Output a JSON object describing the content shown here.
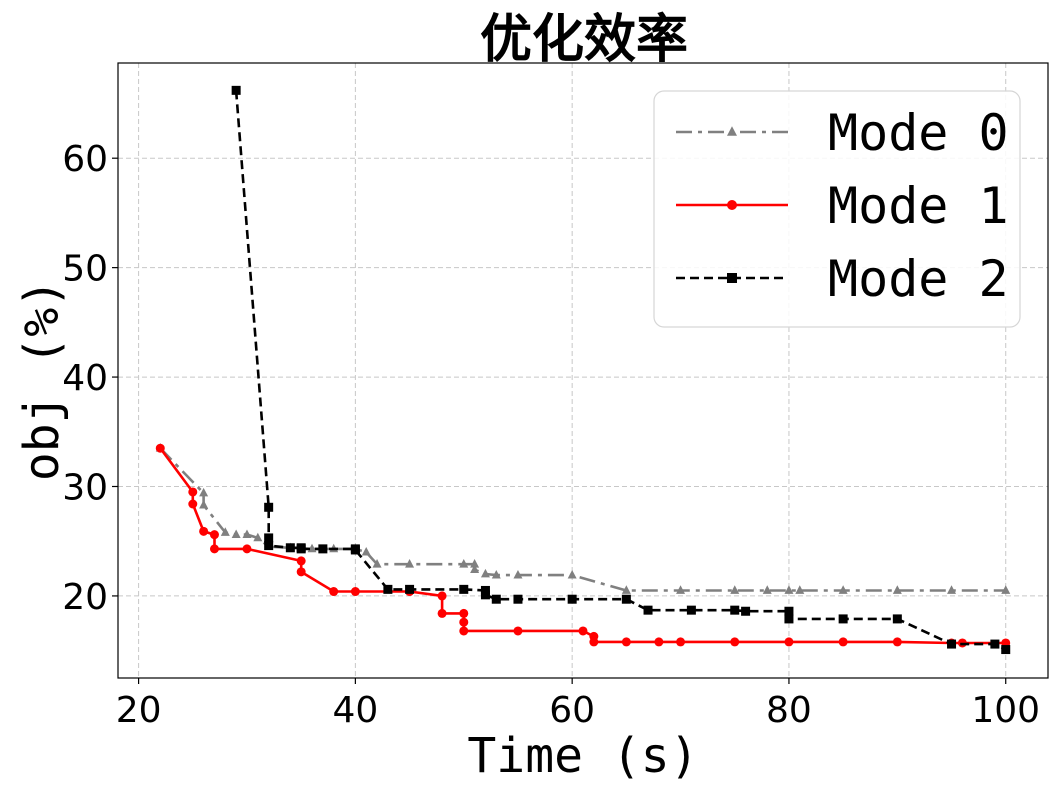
{
  "chart_data": {
    "type": "line",
    "title": "优化效率",
    "xlabel": "Time (s)",
    "ylabel": "obj (%)",
    "xlim": [
      18.1,
      103.9
    ],
    "ylim": [
      12.5,
      68.7
    ],
    "xticks": [
      20,
      40,
      60,
      80,
      100
    ],
    "yticks": [
      20,
      30,
      40,
      50,
      60
    ],
    "grid": true,
    "legend_position": "top-right",
    "series": [
      {
        "name": "Mode 0",
        "color": "#808080",
        "linestyle": "dashdot",
        "marker": "triangle",
        "points": [
          [
            22,
            33.5
          ],
          [
            26,
            29.4
          ],
          [
            26,
            28.3
          ],
          [
            28,
            25.8
          ],
          [
            29,
            25.6
          ],
          [
            30,
            25.6
          ],
          [
            31,
            25.3
          ],
          [
            32,
            24.5
          ],
          [
            34,
            24.4
          ],
          [
            36,
            24.3
          ],
          [
            38,
            24.3
          ],
          [
            40,
            24.3
          ],
          [
            41,
            24.0
          ],
          [
            42,
            22.9
          ],
          [
            45,
            22.9
          ],
          [
            50,
            22.9
          ],
          [
            51,
            22.9
          ],
          [
            51,
            22.4
          ],
          [
            52,
            22.0
          ],
          [
            53,
            21.9
          ],
          [
            55,
            21.9
          ],
          [
            60,
            21.9
          ],
          [
            65,
            20.5
          ],
          [
            70,
            20.5
          ],
          [
            75,
            20.5
          ],
          [
            78,
            20.5
          ],
          [
            80,
            20.5
          ],
          [
            81,
            20.5
          ],
          [
            85,
            20.5
          ],
          [
            90,
            20.5
          ],
          [
            95,
            20.5
          ],
          [
            100,
            20.5
          ]
        ]
      },
      {
        "name": "Mode 1",
        "color": "#ff0000",
        "linestyle": "solid",
        "marker": "circle",
        "points": [
          [
            22,
            33.5
          ],
          [
            25,
            29.5
          ],
          [
            25,
            28.4
          ],
          [
            26,
            25.9
          ],
          [
            27,
            25.6
          ],
          [
            27,
            24.3
          ],
          [
            30,
            24.3
          ],
          [
            35,
            23.2
          ],
          [
            35,
            22.2
          ],
          [
            38,
            20.4
          ],
          [
            40,
            20.4
          ],
          [
            45,
            20.4
          ],
          [
            48,
            20.0
          ],
          [
            48,
            18.4
          ],
          [
            50,
            18.4
          ],
          [
            50,
            17.6
          ],
          [
            50,
            16.8
          ],
          [
            55,
            16.8
          ],
          [
            61,
            16.8
          ],
          [
            62,
            16.3
          ],
          [
            62,
            15.8
          ],
          [
            65,
            15.8
          ],
          [
            68,
            15.8
          ],
          [
            70,
            15.8
          ],
          [
            75,
            15.8
          ],
          [
            80,
            15.8
          ],
          [
            85,
            15.8
          ],
          [
            90,
            15.8
          ],
          [
            95,
            15.7
          ],
          [
            96,
            15.7
          ],
          [
            100,
            15.7
          ]
        ]
      },
      {
        "name": "Mode 2",
        "color": "#000000",
        "linestyle": "dashed",
        "marker": "square",
        "points": [
          [
            29,
            66.2
          ],
          [
            32,
            28.1
          ],
          [
            32,
            25.3
          ],
          [
            32,
            24.6
          ],
          [
            34,
            24.4
          ],
          [
            35,
            24.4
          ],
          [
            35,
            24.3
          ],
          [
            37,
            24.3
          ],
          [
            40,
            24.3
          ],
          [
            40,
            24.2
          ],
          [
            43,
            20.6
          ],
          [
            45,
            20.6
          ],
          [
            50,
            20.6
          ],
          [
            52,
            20.5
          ],
          [
            52,
            20.1
          ],
          [
            53,
            19.7
          ],
          [
            55,
            19.7
          ],
          [
            60,
            19.7
          ],
          [
            65,
            19.7
          ],
          [
            67,
            18.7
          ],
          [
            71,
            18.7
          ],
          [
            75,
            18.7
          ],
          [
            76,
            18.6
          ],
          [
            80,
            18.6
          ],
          [
            80,
            17.9
          ],
          [
            85,
            17.9
          ],
          [
            90,
            17.9
          ],
          [
            95,
            15.6
          ],
          [
            99,
            15.6
          ],
          [
            100,
            15.1
          ]
        ]
      }
    ]
  }
}
